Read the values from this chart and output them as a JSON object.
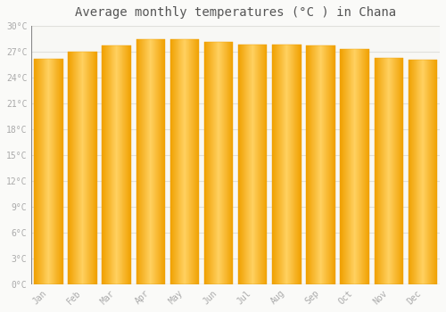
{
  "title": "Average monthly temperatures (°C ) in Chana",
  "months": [
    "Jan",
    "Feb",
    "Mar",
    "Apr",
    "May",
    "Jun",
    "Jul",
    "Aug",
    "Sep",
    "Oct",
    "Nov",
    "Dec"
  ],
  "values": [
    26.2,
    27.0,
    27.7,
    28.5,
    28.5,
    28.1,
    27.8,
    27.8,
    27.7,
    27.3,
    26.3,
    26.1
  ],
  "ylim": [
    0,
    30
  ],
  "yticks": [
    0,
    3,
    6,
    9,
    12,
    15,
    18,
    21,
    24,
    27,
    30
  ],
  "bar_color_center": "#FFD060",
  "bar_color_edge": "#F0A000",
  "background_color": "#FAFAF8",
  "plot_bg_color": "#F8F8F5",
  "grid_color": "#E0E0DC",
  "tick_label_color": "#AAAAAA",
  "title_color": "#555555",
  "title_fontsize": 10,
  "bar_width": 0.85
}
